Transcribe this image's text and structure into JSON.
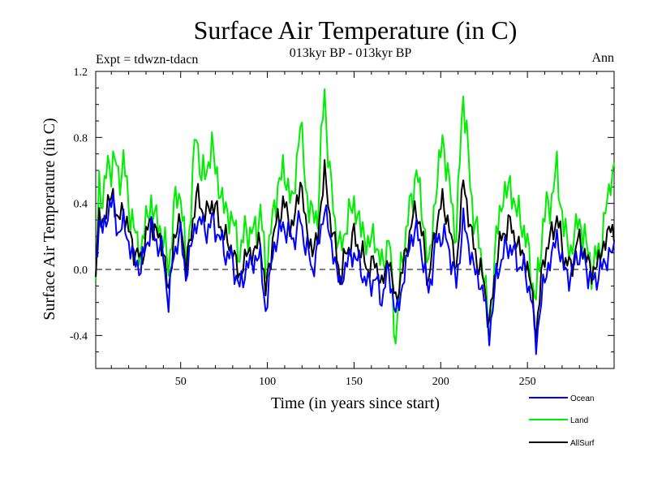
{
  "chart_data": {
    "type": "line",
    "title": "Surface Air Temperature (in C)",
    "subtitle": "013kyr BP - 013kyr BP",
    "experiment_label": "Expt = tdwzn-tdacn",
    "season_label": "Ann",
    "xlabel": "Time (in years since start)",
    "ylabel": "Surface Air Temperature (in C)",
    "xlim": [
      1,
      300
    ],
    "ylim": [
      -0.6,
      1.2
    ],
    "xticks": [
      50,
      100,
      150,
      200,
      250
    ],
    "yticks": [
      -0.4,
      0.0,
      0.4,
      0.8,
      1.2
    ],
    "ytick_labels": [
      "-0.4",
      "0.0",
      "0.4",
      "0.8",
      "1.2"
    ],
    "reference_line": 0.0,
    "series": [
      {
        "name": "Ocean",
        "color": "#0000ff",
        "key_points": [
          [
            1,
            0.05
          ],
          [
            3,
            0.3
          ],
          [
            5,
            0.22
          ],
          [
            8,
            0.35
          ],
          [
            11,
            0.42
          ],
          [
            14,
            0.2
          ],
          [
            17,
            0.3
          ],
          [
            20,
            0.15
          ],
          [
            24,
            0.05
          ],
          [
            27,
            0.0
          ],
          [
            30,
            0.15
          ],
          [
            33,
            0.25
          ],
          [
            36,
            0.18
          ],
          [
            40,
            0.08
          ],
          [
            43,
            -0.2
          ],
          [
            46,
            0.1
          ],
          [
            50,
            0.22
          ],
          [
            53,
            -0.05
          ],
          [
            56,
            0.15
          ],
          [
            59,
            0.28
          ],
          [
            62,
            0.3
          ],
          [
            65,
            0.22
          ],
          [
            68,
            0.3
          ],
          [
            72,
            0.2
          ],
          [
            76,
            0.1
          ],
          [
            80,
            0.05
          ],
          [
            84,
            -0.12
          ],
          [
            88,
            0.02
          ],
          [
            92,
            0.05
          ],
          [
            96,
            0.08
          ],
          [
            99,
            -0.27
          ],
          [
            103,
            0.1
          ],
          [
            106,
            0.2
          ],
          [
            109,
            0.27
          ],
          [
            112,
            0.22
          ],
          [
            115,
            0.18
          ],
          [
            119,
            0.3
          ],
          [
            122,
            0.15
          ],
          [
            126,
            0.0
          ],
          [
            129,
            0.12
          ],
          [
            133,
            0.38
          ],
          [
            136,
            0.2
          ],
          [
            139,
            0.05
          ],
          [
            142,
            -0.1
          ],
          [
            146,
            0.05
          ],
          [
            150,
            0.1
          ],
          [
            154,
            0.0
          ],
          [
            158,
            -0.1
          ],
          [
            162,
            -0.05
          ],
          [
            166,
            -0.18
          ],
          [
            170,
            0.0
          ],
          [
            174,
            -0.28
          ],
          [
            178,
            -0.1
          ],
          [
            182,
            0.15
          ],
          [
            186,
            0.25
          ],
          [
            190,
            0.05
          ],
          [
            193,
            -0.15
          ],
          [
            197,
            0.15
          ],
          [
            201,
            0.22
          ],
          [
            205,
            0.12
          ],
          [
            209,
            -0.1
          ],
          [
            213,
            0.3
          ],
          [
            217,
            0.1
          ],
          [
            221,
            -0.05
          ],
          [
            225,
            -0.15
          ],
          [
            228,
            -0.4
          ],
          [
            232,
            -0.05
          ],
          [
            236,
            0.1
          ],
          [
            240,
            0.15
          ],
          [
            244,
            0.05
          ],
          [
            248,
            0.0
          ],
          [
            252,
            -0.15
          ],
          [
            255,
            -0.45
          ],
          [
            259,
            -0.1
          ],
          [
            263,
            0.05
          ],
          [
            267,
            0.2
          ],
          [
            271,
            0.0
          ],
          [
            275,
            -0.05
          ],
          [
            279,
            0.1
          ],
          [
            283,
            0.05
          ],
          [
            287,
            -0.08
          ],
          [
            291,
            -0.03
          ],
          [
            295,
            0.05
          ],
          [
            298,
            0.1
          ],
          [
            300,
            0.12
          ]
        ]
      },
      {
        "name": "Land",
        "color": "#00ee00",
        "key_points": [
          [
            1,
            -0.1
          ],
          [
            3,
            0.5
          ],
          [
            5,
            0.45
          ],
          [
            8,
            0.6
          ],
          [
            11,
            0.68
          ],
          [
            14,
            0.55
          ],
          [
            17,
            0.65
          ],
          [
            20,
            0.4
          ],
          [
            24,
            0.2
          ],
          [
            27,
            0.1
          ],
          [
            30,
            0.3
          ],
          [
            33,
            0.4
          ],
          [
            36,
            0.3
          ],
          [
            40,
            0.2
          ],
          [
            43,
            0.0
          ],
          [
            46,
            0.35
          ],
          [
            50,
            0.5
          ],
          [
            53,
            0.0
          ],
          [
            56,
            0.4
          ],
          [
            59,
            0.85
          ],
          [
            62,
            0.55
          ],
          [
            65,
            0.6
          ],
          [
            68,
            0.75
          ],
          [
            72,
            0.5
          ],
          [
            76,
            0.35
          ],
          [
            80,
            0.3
          ],
          [
            84,
            0.1
          ],
          [
            88,
            0.25
          ],
          [
            92,
            0.2
          ],
          [
            96,
            0.35
          ],
          [
            99,
            0.0
          ],
          [
            103,
            0.3
          ],
          [
            106,
            0.5
          ],
          [
            109,
            0.6
          ],
          [
            112,
            0.5
          ],
          [
            115,
            0.4
          ],
          [
            119,
            0.92
          ],
          [
            122,
            0.5
          ],
          [
            126,
            0.3
          ],
          [
            129,
            0.35
          ],
          [
            133,
            1.1
          ],
          [
            136,
            0.55
          ],
          [
            139,
            0.3
          ],
          [
            142,
            0.1
          ],
          [
            146,
            0.3
          ],
          [
            150,
            0.4
          ],
          [
            154,
            0.25
          ],
          [
            158,
            0.15
          ],
          [
            162,
            0.2
          ],
          [
            166,
            0.0
          ],
          [
            170,
            0.2
          ],
          [
            174,
            -0.42
          ],
          [
            178,
            0.1
          ],
          [
            182,
            0.35
          ],
          [
            186,
            0.6
          ],
          [
            190,
            0.3
          ],
          [
            193,
            0.0
          ],
          [
            197,
            0.45
          ],
          [
            201,
            0.8
          ],
          [
            205,
            0.5
          ],
          [
            209,
            0.2
          ],
          [
            213,
            1.1
          ],
          [
            217,
            0.5
          ],
          [
            221,
            0.2
          ],
          [
            225,
            0.0
          ],
          [
            228,
            -0.45
          ],
          [
            232,
            0.2
          ],
          [
            236,
            0.45
          ],
          [
            240,
            0.5
          ],
          [
            244,
            0.35
          ],
          [
            248,
            0.25
          ],
          [
            252,
            0.0
          ],
          [
            255,
            -0.2
          ],
          [
            259,
            0.3
          ],
          [
            263,
            0.4
          ],
          [
            267,
            0.6
          ],
          [
            271,
            0.25
          ],
          [
            275,
            0.1
          ],
          [
            279,
            0.3
          ],
          [
            283,
            0.2
          ],
          [
            287,
            0.0
          ],
          [
            291,
            0.1
          ],
          [
            295,
            0.3
          ],
          [
            298,
            0.6
          ],
          [
            300,
            0.55
          ]
        ]
      },
      {
        "name": "AllSurf",
        "color": "#000000",
        "key_points": [
          [
            1,
            0.0
          ],
          [
            3,
            0.32
          ],
          [
            5,
            0.28
          ],
          [
            8,
            0.4
          ],
          [
            11,
            0.45
          ],
          [
            14,
            0.28
          ],
          [
            17,
            0.38
          ],
          [
            20,
            0.22
          ],
          [
            24,
            0.1
          ],
          [
            27,
            0.05
          ],
          [
            30,
            0.2
          ],
          [
            33,
            0.3
          ],
          [
            36,
            0.22
          ],
          [
            40,
            0.12
          ],
          [
            43,
            -0.15
          ],
          [
            46,
            0.18
          ],
          [
            50,
            0.3
          ],
          [
            53,
            0.0
          ],
          [
            56,
            0.22
          ],
          [
            59,
            0.45
          ],
          [
            62,
            0.38
          ],
          [
            65,
            0.32
          ],
          [
            68,
            0.42
          ],
          [
            72,
            0.3
          ],
          [
            76,
            0.18
          ],
          [
            80,
            0.12
          ],
          [
            84,
            -0.05
          ],
          [
            88,
            0.1
          ],
          [
            92,
            0.1
          ],
          [
            96,
            0.18
          ],
          [
            99,
            -0.15
          ],
          [
            103,
            0.18
          ],
          [
            106,
            0.3
          ],
          [
            109,
            0.4
          ],
          [
            112,
            0.32
          ],
          [
            115,
            0.25
          ],
          [
            119,
            0.55
          ],
          [
            122,
            0.28
          ],
          [
            126,
            0.1
          ],
          [
            129,
            0.2
          ],
          [
            133,
            0.6
          ],
          [
            136,
            0.32
          ],
          [
            139,
            0.15
          ],
          [
            142,
            -0.05
          ],
          [
            146,
            0.12
          ],
          [
            150,
            0.2
          ],
          [
            154,
            0.1
          ],
          [
            158,
            0.0
          ],
          [
            162,
            0.05
          ],
          [
            166,
            -0.1
          ],
          [
            170,
            0.08
          ],
          [
            174,
            -0.2
          ],
          [
            178,
            0.0
          ],
          [
            182,
            0.22
          ],
          [
            186,
            0.38
          ],
          [
            190,
            0.15
          ],
          [
            193,
            -0.08
          ],
          [
            197,
            0.25
          ],
          [
            201,
            0.42
          ],
          [
            205,
            0.25
          ],
          [
            209,
            0.0
          ],
          [
            213,
            0.55
          ],
          [
            217,
            0.25
          ],
          [
            221,
            0.05
          ],
          [
            225,
            -0.08
          ],
          [
            228,
            -0.35
          ],
          [
            232,
            0.05
          ],
          [
            236,
            0.22
          ],
          [
            240,
            0.28
          ],
          [
            244,
            0.15
          ],
          [
            248,
            0.08
          ],
          [
            252,
            -0.08
          ],
          [
            255,
            -0.4
          ],
          [
            259,
            0.05
          ],
          [
            263,
            0.18
          ],
          [
            267,
            0.32
          ],
          [
            271,
            0.08
          ],
          [
            275,
            0.0
          ],
          [
            279,
            0.18
          ],
          [
            283,
            0.1
          ],
          [
            287,
            -0.02
          ],
          [
            291,
            0.05
          ],
          [
            295,
            0.18
          ],
          [
            298,
            0.25
          ],
          [
            300,
            0.22
          ]
        ]
      }
    ]
  }
}
